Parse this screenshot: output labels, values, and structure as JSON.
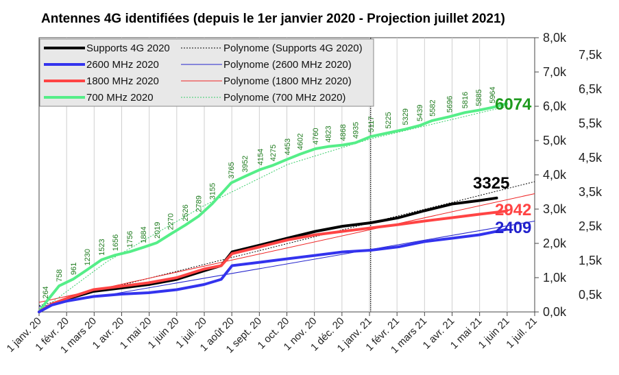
{
  "chart_data": {
    "type": "line",
    "title": "Antennes 4G identifiées (depuis le 1er janvier 2020 - Projection juillet 2021)",
    "x_tick_labels": [
      "1 janv. 20",
      "1 févr. 20",
      "1 mars 20",
      "1 avr. 20",
      "1 mai 20",
      "1 juin 20",
      "1 juil. 20",
      "1 août 20",
      "1 sept. 20",
      "1 oct. 20",
      "1 nov. 20",
      "1 déc. 20",
      "1 janv. 21",
      "1 févr. 21",
      "1 mars 21",
      "1 avr. 21",
      "1 mai 21",
      "1 juin 21",
      "1 juil. 21"
    ],
    "x_range": [
      "2020-01-01",
      "2021-07-01"
    ],
    "y_left": {
      "ylim": [
        0,
        8000
      ],
      "tick_labels": [
        "0,0k",
        "1,0k",
        "2,0k",
        "3,0k",
        "4,0k",
        "5,0k",
        "6,0k",
        "7,0k",
        "8,0k"
      ]
    },
    "y_right": {
      "ylim": [
        0,
        8000
      ],
      "tick_labels": [
        "0,5k",
        "1,5k",
        "2,5k",
        "3,5k",
        "4,5k",
        "5,5k",
        "6,5k",
        "7,5k"
      ]
    },
    "grid": "vertical",
    "vertical_marker": "2021-01-01",
    "legend_placement": "top-left",
    "series": [
      {
        "name": "700 MHz 2020",
        "color": "#55ee88",
        "values": [
          [
            "2020-01-01",
            0
          ],
          [
            "2020-01-08",
            264
          ],
          [
            "2020-01-23",
            758
          ],
          [
            "2020-02-08",
            961
          ],
          [
            "2020-02-23",
            1230
          ],
          [
            "2020-03-10",
            1523
          ],
          [
            "2020-03-25",
            1656
          ],
          [
            "2020-04-10",
            1756
          ],
          [
            "2020-04-25",
            1884
          ],
          [
            "2020-05-10",
            2019
          ],
          [
            "2020-05-25",
            2270
          ],
          [
            "2020-06-10",
            2526
          ],
          [
            "2020-06-25",
            2789
          ],
          [
            "2020-07-10",
            3155
          ],
          [
            "2020-07-31",
            3765
          ],
          [
            "2020-08-15",
            3952
          ],
          [
            "2020-09-01",
            4154
          ],
          [
            "2020-09-15",
            4275
          ],
          [
            "2020-10-01",
            4453
          ],
          [
            "2020-10-15",
            4602
          ],
          [
            "2020-11-01",
            4760
          ],
          [
            "2020-11-15",
            4823
          ],
          [
            "2020-12-01",
            4868
          ],
          [
            "2020-12-15",
            4935
          ],
          [
            "2021-01-01",
            5117
          ],
          [
            "2021-01-20",
            5225
          ],
          [
            "2021-02-08",
            5329
          ],
          [
            "2021-02-24",
            5439
          ],
          [
            "2021-03-10",
            5582
          ],
          [
            "2021-03-29",
            5696
          ],
          [
            "2021-04-15",
            5816
          ],
          [
            "2021-04-30",
            5885
          ],
          [
            "2021-05-15",
            5964
          ],
          [
            "2021-05-31",
            6074
          ]
        ]
      },
      {
        "name": "Supports 4G 2020",
        "color": "#000000",
        "values": [
          [
            "2020-01-01",
            0
          ],
          [
            "2020-01-15",
            220
          ],
          [
            "2020-02-01",
            380
          ],
          [
            "2020-03-01",
            600
          ],
          [
            "2020-04-01",
            700
          ],
          [
            "2020-05-01",
            800
          ],
          [
            "2020-06-01",
            950
          ],
          [
            "2020-07-01",
            1200
          ],
          [
            "2020-07-20",
            1350
          ],
          [
            "2020-08-01",
            1750
          ],
          [
            "2020-09-01",
            1950
          ],
          [
            "2020-10-01",
            2150
          ],
          [
            "2020-11-01",
            2350
          ],
          [
            "2020-12-01",
            2500
          ],
          [
            "2021-01-01",
            2600
          ],
          [
            "2021-02-01",
            2750
          ],
          [
            "2021-03-01",
            2950
          ],
          [
            "2021-04-01",
            3150
          ],
          [
            "2021-05-01",
            3250
          ],
          [
            "2021-05-20",
            3325
          ]
        ]
      },
      {
        "name": "1800 MHz 2020",
        "color": "#ff4444",
        "values": [
          [
            "2020-01-01",
            0
          ],
          [
            "2020-01-15",
            230
          ],
          [
            "2020-02-01",
            400
          ],
          [
            "2020-03-01",
            650
          ],
          [
            "2020-04-01",
            750
          ],
          [
            "2020-05-01",
            850
          ],
          [
            "2020-06-01",
            1000
          ],
          [
            "2020-07-01",
            1250
          ],
          [
            "2020-07-20",
            1350
          ],
          [
            "2020-08-01",
            1700
          ],
          [
            "2020-09-01",
            1900
          ],
          [
            "2020-10-01",
            2100
          ],
          [
            "2020-11-01",
            2250
          ],
          [
            "2020-12-01",
            2350
          ],
          [
            "2021-01-01",
            2450
          ],
          [
            "2021-02-01",
            2550
          ],
          [
            "2021-03-01",
            2650
          ],
          [
            "2021-04-01",
            2750
          ],
          [
            "2021-05-01",
            2850
          ],
          [
            "2021-05-31",
            2942
          ]
        ]
      },
      {
        "name": "2600 MHz 2020",
        "color": "#3333ee",
        "values": [
          [
            "2020-01-01",
            0
          ],
          [
            "2020-01-15",
            200
          ],
          [
            "2020-02-01",
            320
          ],
          [
            "2020-03-01",
            450
          ],
          [
            "2020-04-01",
            520
          ],
          [
            "2020-05-01",
            560
          ],
          [
            "2020-06-01",
            650
          ],
          [
            "2020-07-01",
            800
          ],
          [
            "2020-07-20",
            950
          ],
          [
            "2020-08-01",
            1350
          ],
          [
            "2020-09-01",
            1450
          ],
          [
            "2020-10-01",
            1550
          ],
          [
            "2020-11-01",
            1650
          ],
          [
            "2020-12-01",
            1750
          ],
          [
            "2021-01-01",
            1800
          ],
          [
            "2021-02-01",
            1900
          ],
          [
            "2021-03-01",
            2050
          ],
          [
            "2021-04-01",
            2150
          ],
          [
            "2021-05-01",
            2250
          ],
          [
            "2021-05-31",
            2409
          ]
        ]
      }
    ],
    "trendlines": [
      {
        "name": "Polynome (Supports 4G 2020)",
        "color": "#000000",
        "style": "dotted",
        "values": [
          [
            "2020-01-01",
            180
          ],
          [
            "2021-07-01",
            3800
          ]
        ]
      },
      {
        "name": "Polynome (2600 MHz 2020)",
        "color": "#2222cc",
        "style": "solid-thin",
        "values": [
          [
            "2020-01-01",
            150
          ],
          [
            "2021-07-01",
            2650
          ]
        ]
      },
      {
        "name": "Polynome (1800 MHz 2020)",
        "color": "#ee2222",
        "style": "solid-thin",
        "values": [
          [
            "2020-01-01",
            280
          ],
          [
            "2021-07-01",
            3450
          ]
        ]
      },
      {
        "name": "Polynome (700 MHz 2020)",
        "color": "#33cc66",
        "style": "dotted-thin",
        "values": [
          [
            "2020-01-01",
            0
          ],
          [
            "2020-03-15",
            1450
          ],
          [
            "2020-07-01",
            3100
          ],
          [
            "2020-10-01",
            4300
          ],
          [
            "2021-01-01",
            5050
          ],
          [
            "2021-06-01",
            6000
          ]
        ]
      }
    ],
    "data_labels_series": "700 MHz 2020",
    "end_labels": [
      {
        "text": "6074",
        "color": "#1e9a1e",
        "series": "700 MHz 2020"
      },
      {
        "text": "3325",
        "color": "#000000",
        "series": "Supports 4G 2020"
      },
      {
        "text": "2942",
        "color": "#ff4444",
        "series": "1800 MHz 2020"
      },
      {
        "text": "2409",
        "color": "#2222cc",
        "series": "2600 MHz 2020"
      }
    ],
    "legend": [
      {
        "label": "Supports 4G 2020",
        "color": "#000000",
        "style": "thick"
      },
      {
        "label": "Polynome (Supports 4G 2020)",
        "color": "#000000",
        "style": "dotted"
      },
      {
        "label": "2600 MHz 2020",
        "color": "#3333ee",
        "style": "thick"
      },
      {
        "label": "Polynome (2600 MHz 2020)",
        "color": "#2222cc",
        "style": "thin"
      },
      {
        "label": "1800 MHz 2020",
        "color": "#ff4444",
        "style": "thick"
      },
      {
        "label": "Polynome (1800 MHz 2020)",
        "color": "#ee2222",
        "style": "thin"
      },
      {
        "label": "700 MHz 2020",
        "color": "#55ee88",
        "style": "thick"
      },
      {
        "label": "Polynome (700 MHz 2020)",
        "color": "#33cc66",
        "style": "dotted"
      }
    ]
  }
}
